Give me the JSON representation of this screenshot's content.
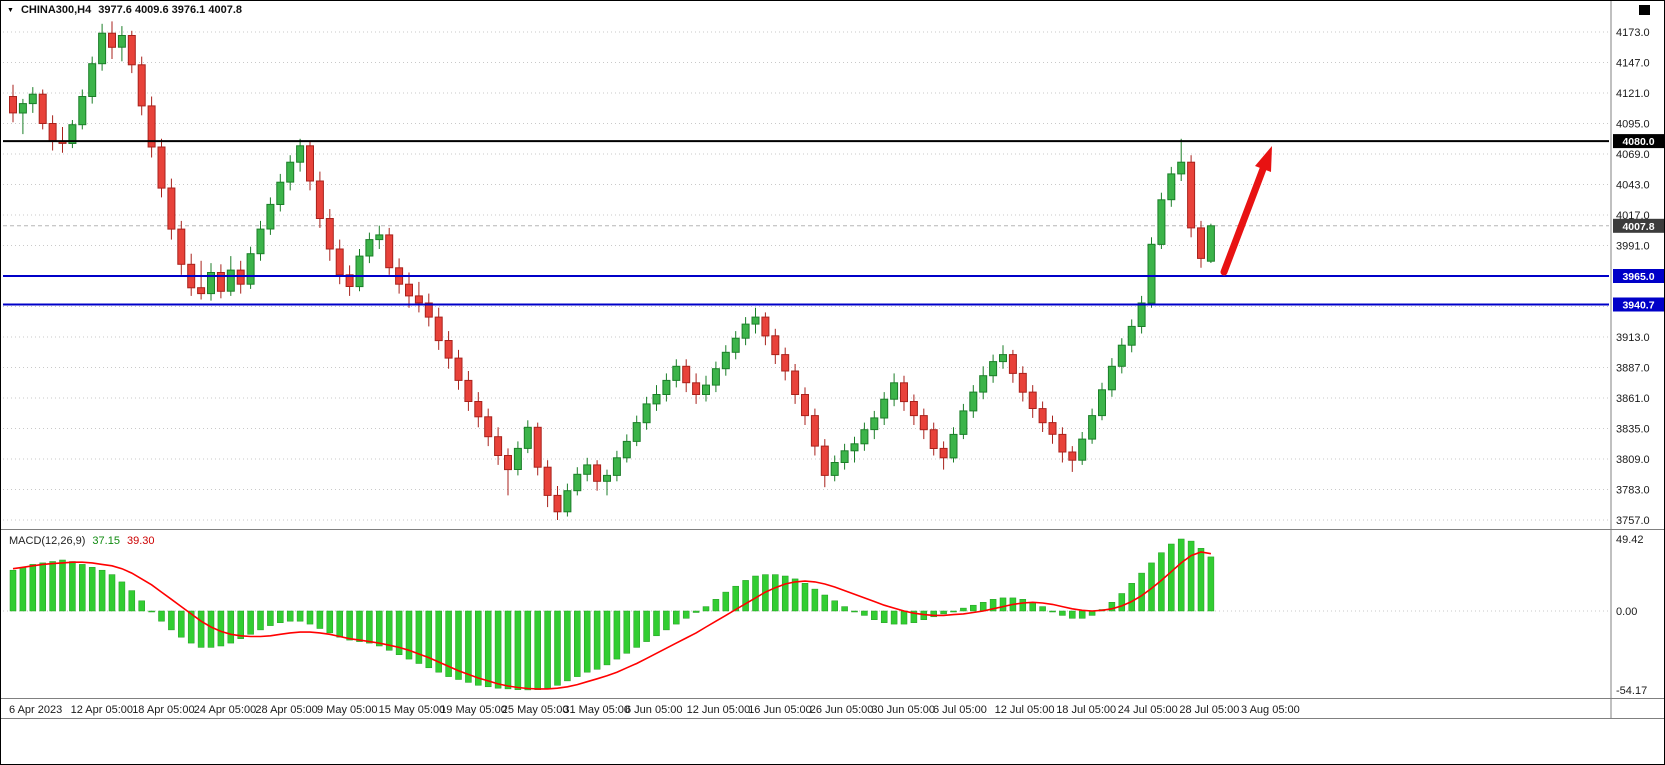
{
  "header": {
    "symbol_title": "CHINA300,H4",
    "quote_text": "3977.6 4009.6 3976.1 4007.8"
  },
  "chart_data": {
    "type": "candlestick",
    "title": "CHINA300,H4",
    "timeframe": "H4",
    "last_quote": {
      "open": 3977.6,
      "high": 4009.6,
      "low": 3976.1,
      "close": 4007.8
    },
    "price_axis": {
      "min": 3757.0,
      "max": 4173.0,
      "step": 26.0,
      "tick_labels": [
        "4173.0",
        "4147.0",
        "4121.0",
        "4095.0",
        "4069.0",
        "4043.0",
        "4017.0",
        "3991.0",
        "3965.0",
        "3939.0",
        "3913.0",
        "3887.0",
        "3861.0",
        "3835.0",
        "3809.0",
        "3783.0",
        "3757.0"
      ]
    },
    "time_labels": [
      "6 Apr 2023",
      "12 Apr 05:00",
      "18 Apr 05:00",
      "24 Apr 05:00",
      "28 Apr 05:00",
      "9 May 05:00",
      "15 May 05:00",
      "19 May 05:00",
      "25 May 05:00",
      "31 May 05:00",
      "6 Jun 05:00",
      "12 Jun 05:00",
      "16 Jun 05:00",
      "26 Jun 05:00",
      "30 Jun 05:00",
      "6 Jul 05:00",
      "12 Jul 05:00",
      "18 Jul 05:00",
      "24 Jul 05:00",
      "28 Jul 05:00",
      "3 Aug 05:00"
    ],
    "candles": [
      [
        4118,
        4128,
        4096,
        4104
      ],
      [
        4104,
        4116,
        4086,
        4112
      ],
      [
        4112,
        4126,
        4104,
        4120
      ],
      [
        4120,
        4124,
        4090,
        4095
      ],
      [
        4095,
        4102,
        4072,
        4080
      ],
      [
        4080,
        4092,
        4070,
        4078
      ],
      [
        4078,
        4098,
        4074,
        4094
      ],
      [
        4094,
        4124,
        4090,
        4118
      ],
      [
        4118,
        4152,
        4112,
        4146
      ],
      [
        4146,
        4180,
        4140,
        4172
      ],
      [
        4172,
        4182,
        4150,
        4160
      ],
      [
        4160,
        4178,
        4148,
        4170
      ],
      [
        4170,
        4174,
        4138,
        4145
      ],
      [
        4145,
        4152,
        4102,
        4110
      ],
      [
        4110,
        4118,
        4066,
        4075
      ],
      [
        4075,
        4082,
        4032,
        4040
      ],
      [
        4040,
        4048,
        3996,
        4005
      ],
      [
        4005,
        4012,
        3966,
        3975
      ],
      [
        3975,
        3984,
        3948,
        3955
      ],
      [
        3955,
        3978,
        3945,
        3950
      ],
      [
        3950,
        3976,
        3944,
        3968
      ],
      [
        3968,
        3975,
        3946,
        3952
      ],
      [
        3952,
        3982,
        3948,
        3970
      ],
      [
        3970,
        3978,
        3950,
        3958
      ],
      [
        3958,
        3990,
        3954,
        3984
      ],
      [
        3984,
        4012,
        3978,
        4005
      ],
      [
        4005,
        4032,
        4000,
        4026
      ],
      [
        4026,
        4052,
        4020,
        4045
      ],
      [
        4045,
        4068,
        4038,
        4062
      ],
      [
        4062,
        4082,
        4054,
        4076
      ],
      [
        4076,
        4080,
        4038,
        4046
      ],
      [
        4046,
        4054,
        4006,
        4014
      ],
      [
        4014,
        4022,
        3978,
        3988
      ],
      [
        3988,
        3996,
        3958,
        3966
      ],
      [
        3966,
        3974,
        3948,
        3956
      ],
      [
        3956,
        3988,
        3952,
        3982
      ],
      [
        3982,
        4002,
        3976,
        3996
      ],
      [
        3996,
        4008,
        3988,
        4000
      ],
      [
        4000,
        4006,
        3966,
        3972
      ],
      [
        3972,
        3980,
        3950,
        3958
      ],
      [
        3958,
        3968,
        3938,
        3948
      ],
      [
        3948,
        3960,
        3934,
        3942
      ],
      [
        3942,
        3950,
        3922,
        3930
      ],
      [
        3930,
        3938,
        3902,
        3910
      ],
      [
        3910,
        3918,
        3886,
        3895
      ],
      [
        3895,
        3902,
        3868,
        3876
      ],
      [
        3876,
        3884,
        3850,
        3858
      ],
      [
        3858,
        3866,
        3836,
        3845
      ],
      [
        3845,
        3852,
        3820,
        3828
      ],
      [
        3828,
        3836,
        3804,
        3812
      ],
      [
        3812,
        3818,
        3778,
        3800
      ],
      [
        3800,
        3824,
        3795,
        3818
      ],
      [
        3818,
        3842,
        3814,
        3836
      ],
      [
        3836,
        3840,
        3795,
        3802
      ],
      [
        3802,
        3808,
        3768,
        3778
      ],
      [
        3778,
        3786,
        3757,
        3764
      ],
      [
        3764,
        3788,
        3760,
        3782
      ],
      [
        3782,
        3802,
        3778,
        3796
      ],
      [
        3796,
        3810,
        3790,
        3804
      ],
      [
        3804,
        3808,
        3782,
        3790
      ],
      [
        3790,
        3800,
        3778,
        3795
      ],
      [
        3795,
        3816,
        3790,
        3810
      ],
      [
        3810,
        3830,
        3806,
        3824
      ],
      [
        3824,
        3846,
        3820,
        3840
      ],
      [
        3840,
        3862,
        3834,
        3856
      ],
      [
        3856,
        3872,
        3850,
        3864
      ],
      [
        3864,
        3882,
        3858,
        3876
      ],
      [
        3876,
        3894,
        3870,
        3888
      ],
      [
        3888,
        3894,
        3866,
        3874
      ],
      [
        3874,
        3882,
        3856,
        3864
      ],
      [
        3864,
        3880,
        3858,
        3872
      ],
      [
        3872,
        3892,
        3866,
        3886
      ],
      [
        3886,
        3906,
        3880,
        3900
      ],
      [
        3900,
        3918,
        3894,
        3912
      ],
      [
        3912,
        3930,
        3906,
        3924
      ],
      [
        3924,
        3938,
        3916,
        3930
      ],
      [
        3930,
        3934,
        3906,
        3914
      ],
      [
        3914,
        3920,
        3890,
        3898
      ],
      [
        3898,
        3904,
        3876,
        3884
      ],
      [
        3884,
        3890,
        3856,
        3864
      ],
      [
        3864,
        3870,
        3838,
        3846
      ],
      [
        3846,
        3852,
        3812,
        3820
      ],
      [
        3820,
        3826,
        3785,
        3795
      ],
      [
        3795,
        3812,
        3790,
        3806
      ],
      [
        3806,
        3822,
        3800,
        3816
      ],
      [
        3816,
        3828,
        3806,
        3822
      ],
      [
        3822,
        3840,
        3816,
        3834
      ],
      [
        3834,
        3850,
        3826,
        3844
      ],
      [
        3844,
        3866,
        3838,
        3860
      ],
      [
        3860,
        3882,
        3854,
        3874
      ],
      [
        3874,
        3880,
        3850,
        3858
      ],
      [
        3858,
        3864,
        3838,
        3846
      ],
      [
        3846,
        3852,
        3826,
        3834
      ],
      [
        3834,
        3840,
        3812,
        3818
      ],
      [
        3818,
        3824,
        3800,
        3810
      ],
      [
        3810,
        3836,
        3806,
        3830
      ],
      [
        3830,
        3856,
        3826,
        3850
      ],
      [
        3850,
        3872,
        3844,
        3866
      ],
      [
        3866,
        3888,
        3860,
        3880
      ],
      [
        3880,
        3898,
        3874,
        3892
      ],
      [
        3892,
        3906,
        3886,
        3898
      ],
      [
        3898,
        3902,
        3874,
        3882
      ],
      [
        3882,
        3888,
        3858,
        3866
      ],
      [
        3866,
        3872,
        3844,
        3852
      ],
      [
        3852,
        3858,
        3832,
        3840
      ],
      [
        3840,
        3846,
        3822,
        3830
      ],
      [
        3830,
        3836,
        3806,
        3815
      ],
      [
        3815,
        3820,
        3798,
        3808
      ],
      [
        3808,
        3832,
        3804,
        3826
      ],
      [
        3826,
        3852,
        3822,
        3846
      ],
      [
        3846,
        3874,
        3842,
        3868
      ],
      [
        3868,
        3895,
        3862,
        3888
      ],
      [
        3888,
        3912,
        3882,
        3906
      ],
      [
        3906,
        3928,
        3900,
        3922
      ],
      [
        3922,
        3948,
        3916,
        3942
      ],
      [
        3942,
        3998,
        3938,
        3992
      ],
      [
        3992,
        4036,
        3988,
        4030
      ],
      [
        4030,
        4058,
        4024,
        4052
      ],
      [
        4052,
        4082,
        4046,
        4062
      ],
      [
        4062,
        4068,
        3998,
        4006
      ],
      [
        4006,
        4012,
        3972,
        3980
      ],
      [
        3977.6,
        4009.6,
        3976.1,
        4007.8
      ]
    ],
    "horizontal_lines": [
      {
        "price": 4080.0,
        "color": "#000000",
        "label": "4080.0",
        "label_bg": "#000000"
      },
      {
        "price": 3965.0,
        "color": "#0000c8",
        "label": "3965.0",
        "label_bg": "#0000c8"
      },
      {
        "price": 3940.7,
        "color": "#0000c8",
        "label": "3940.7",
        "label_bg": "#0000c8"
      }
    ],
    "current_price_badge": {
      "price": 4007.8,
      "label": "4007.8",
      "bg": "#3c3c3c"
    },
    "annotation_arrow": {
      "color": "#e81212",
      "tail": [
        1223,
        271
      ],
      "head_base": [
        1262,
        168
      ],
      "head_points": [
        [
          1271,
          145
        ],
        [
          1270,
          171
        ],
        [
          1254,
          165
        ]
      ]
    },
    "macd": {
      "label": "MACD(12,26,9)",
      "value_main": "37.15",
      "value_signal": "39.30",
      "axis_labels": [
        "49.42",
        "0.00",
        "-54.17"
      ],
      "axis_max": 49.42,
      "axis_min": -54.17,
      "histogram_color": "#32cd32",
      "signal_color": "#ff0000",
      "histogram": [
        28,
        30,
        32,
        33,
        34,
        35,
        34,
        32,
        30,
        28,
        25,
        20,
        14,
        7,
        0,
        -7,
        -13,
        -18,
        -22,
        -25,
        -25,
        -24,
        -22,
        -19,
        -16,
        -13,
        -10,
        -8,
        -7,
        -7,
        -9,
        -12,
        -15,
        -18,
        -20,
        -21,
        -22,
        -24,
        -27,
        -30,
        -33,
        -36,
        -39,
        -42,
        -45,
        -47,
        -49,
        -51,
        -52,
        -53,
        -53.5,
        -54,
        -54.17,
        -54,
        -53,
        -51,
        -48,
        -45,
        -42,
        -40,
        -37,
        -33,
        -29,
        -25,
        -21,
        -17,
        -13,
        -9,
        -5,
        -1,
        3,
        8,
        13,
        17,
        21,
        24,
        25,
        25,
        24,
        22,
        19,
        15,
        11,
        7,
        3,
        0,
        -3,
        -6,
        -8,
        -9,
        -9,
        -8,
        -6,
        -4,
        -2,
        0,
        2,
        4,
        6,
        8,
        9,
        9,
        8,
        6,
        3,
        0,
        -3,
        -5,
        -5,
        -3,
        1,
        6,
        12,
        19,
        26,
        33,
        40,
        46,
        49.42,
        48,
        43,
        37.15
      ],
      "signal": [
        29,
        30,
        31,
        32,
        32.5,
        33,
        33.5,
        33.5,
        33,
        32,
        31,
        29,
        26,
        22,
        18,
        13,
        8,
        3,
        -2,
        -7,
        -11,
        -14,
        -16,
        -17,
        -17.5,
        -17.5,
        -17,
        -16,
        -15,
        -14.5,
        -14.5,
        -15,
        -16,
        -17.5,
        -19,
        -20,
        -21,
        -22,
        -23.5,
        -25,
        -27,
        -29.5,
        -32,
        -35,
        -38,
        -41,
        -43.5,
        -46,
        -48,
        -50,
        -51.5,
        -52.5,
        -53.2,
        -53.5,
        -53.5,
        -53,
        -52,
        -50.5,
        -48.5,
        -46.5,
        -44.5,
        -42,
        -39,
        -36,
        -32.5,
        -29,
        -25.5,
        -22,
        -18.5,
        -15,
        -11,
        -7,
        -3,
        1,
        5,
        9,
        13,
        16,
        18.5,
        20,
        20.5,
        20,
        18.5,
        16.5,
        14,
        11.5,
        9,
        6.5,
        4,
        2,
        0,
        -1.5,
        -2.5,
        -3,
        -3,
        -2.5,
        -2,
        -1,
        0,
        1.5,
        3,
        4.5,
        5.5,
        6,
        5.5,
        4.5,
        3,
        1.5,
        0.5,
        0,
        0.5,
        1.5,
        3.5,
        6.5,
        10.5,
        15.5,
        21,
        27,
        33,
        38,
        40.5,
        39.3
      ]
    },
    "colors": {
      "bull": "#3cb44a",
      "bull_border": "#1b7e28",
      "bear": "#e8423a",
      "bear_border": "#a8221c",
      "grid": "#c9c9c9"
    }
  }
}
